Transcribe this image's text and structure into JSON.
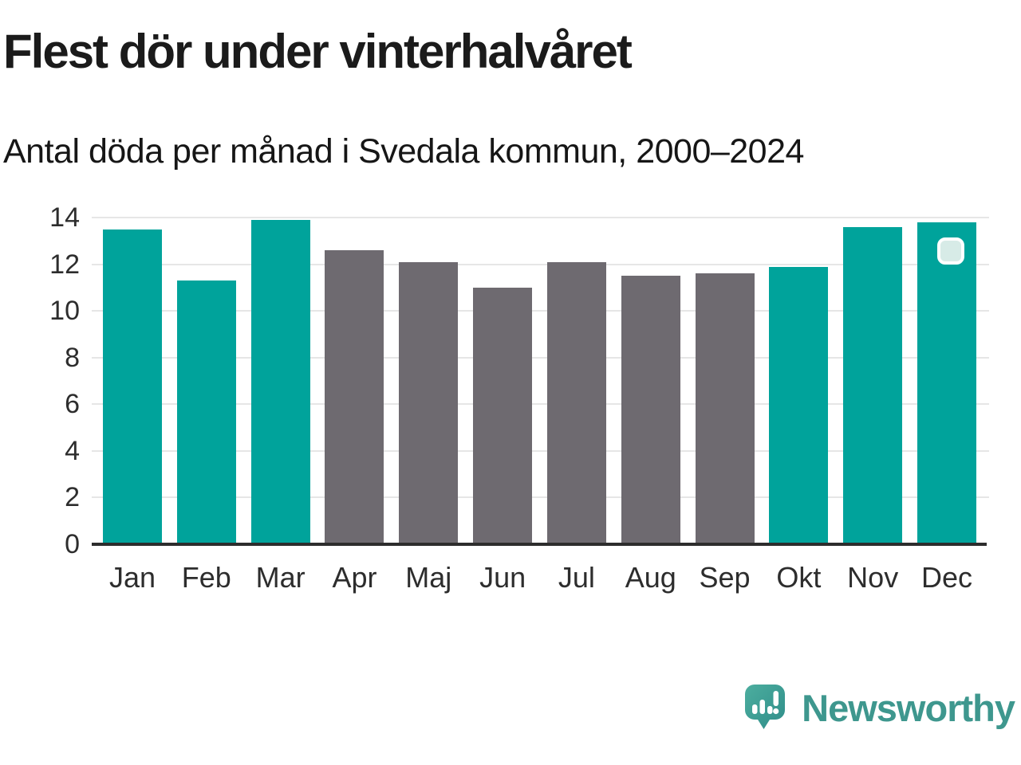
{
  "header": {
    "title": "Flest dör under vinterhalvåret",
    "subtitle": "Antal döda per månad i Svedala kommun, 2000–2024"
  },
  "chart_data": {
    "type": "bar",
    "title": "Flest dör under vinterhalvåret",
    "subtitle": "Antal döda per månad i Svedala kommun, 2000–2024",
    "categories": [
      "Jan",
      "Feb",
      "Mar",
      "Apr",
      "Maj",
      "Jun",
      "Jul",
      "Aug",
      "Sep",
      "Okt",
      "Nov",
      "Dec"
    ],
    "values": [
      13.5,
      11.3,
      13.9,
      12.6,
      12.1,
      11.0,
      12.1,
      11.5,
      11.6,
      11.9,
      13.6,
      13.8
    ],
    "bar_groups": [
      "winter",
      "winter",
      "winter",
      "summer",
      "summer",
      "summer",
      "summer",
      "summer",
      "summer",
      "winter",
      "winter",
      "winter"
    ],
    "group_colors": {
      "winter": "#00a39b",
      "summer": "#6e6a70"
    },
    "ylim": [
      0,
      14
    ],
    "yticks": [
      0,
      2,
      4,
      6,
      8,
      10,
      12,
      14
    ],
    "xlabel": "",
    "ylabel": "",
    "grid": "horizontal",
    "legend": "none",
    "highlight_marker": {
      "category": "Dec",
      "fill": "#d7ebe7",
      "border": "#ffffff"
    }
  },
  "branding": {
    "wordmark": "Newsworthy",
    "icon": "newsworthy-speech-bubble-bar-chart-icon",
    "color": "#3e978e"
  },
  "colors": {
    "accent_teal": "#00a39b",
    "neutral_gray": "#6e6a70",
    "axis": "#2d2d2d",
    "gridline": "#e6e6e6",
    "text": "#1b1b1b"
  }
}
